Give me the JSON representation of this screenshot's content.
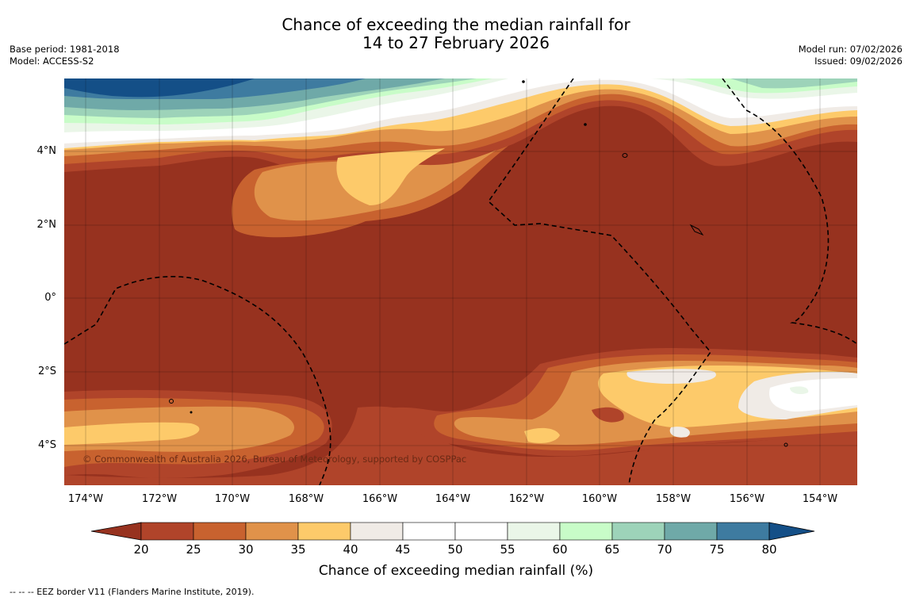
{
  "title_line1": "Chance of exceeding the median rainfall for",
  "title_line2": "14 to 27 February 2026",
  "base_period": "Base period: 1981-2018",
  "model": "Model: ACCESS-S2",
  "model_run": "Model run: 07/02/2026",
  "issued": "Issued: 09/02/2026",
  "copyright": "© Commonwealth of Australia 2026, Bureau of Meteorology, supported by COSPPac",
  "lon_labels": [
    "174°W",
    "172°W",
    "170°W",
    "168°W",
    "166°W",
    "164°W",
    "162°W",
    "160°W",
    "158°W",
    "156°W",
    "154°W"
  ],
  "lat_labels": [
    "4°N",
    "2°N",
    "0°",
    "2°S",
    "4°S"
  ],
  "colorbar": {
    "title": "Chance of exceeding median rainfall (%)",
    "ticks": [
      "20",
      "25",
      "30",
      "35",
      "40",
      "45",
      "50",
      "55",
      "60",
      "65",
      "70",
      "75",
      "80"
    ],
    "colors": [
      "#97321f",
      "#b0442a",
      "#c8622f",
      "#e0924a",
      "#fdca6a",
      "#f0ebe6",
      "#ffffff",
      "#ffffff",
      "#eaf6e8",
      "#c8fcc8",
      "#9dd3b9",
      "#6fa9a8",
      "#3e7ba0",
      "#144f87"
    ]
  },
  "footer": "--  --  -- EEZ border V11 (Flanders Marine Institute, 2019)."
}
